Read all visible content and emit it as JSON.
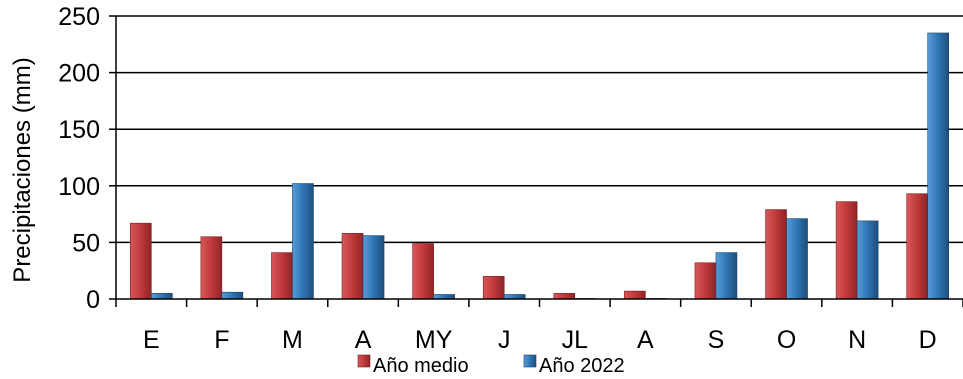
{
  "chart_data": {
    "type": "bar",
    "ylabel": "Precipitaciones (mm)",
    "categories": [
      "E",
      "F",
      "M",
      "A",
      "MY",
      "J",
      "JL",
      "A",
      "S",
      "O",
      "N",
      "D"
    ],
    "series": [
      {
        "name": "Año medio",
        "color": "#c0393b",
        "values": [
          67,
          55,
          41,
          58,
          49,
          20,
          5,
          7,
          32,
          79,
          86,
          93
        ]
      },
      {
        "name": "Año 2022",
        "color": "#2e75b6",
        "values": [
          5,
          6,
          102,
          56,
          4,
          4,
          0.5,
          0.5,
          41,
          71,
          69,
          235
        ]
      }
    ],
    "yticks": [
      "0",
      "50",
      "100",
      "150",
      "200",
      "250"
    ],
    "ylim": [
      0,
      250
    ],
    "grid": true,
    "legend": "bottom"
  }
}
